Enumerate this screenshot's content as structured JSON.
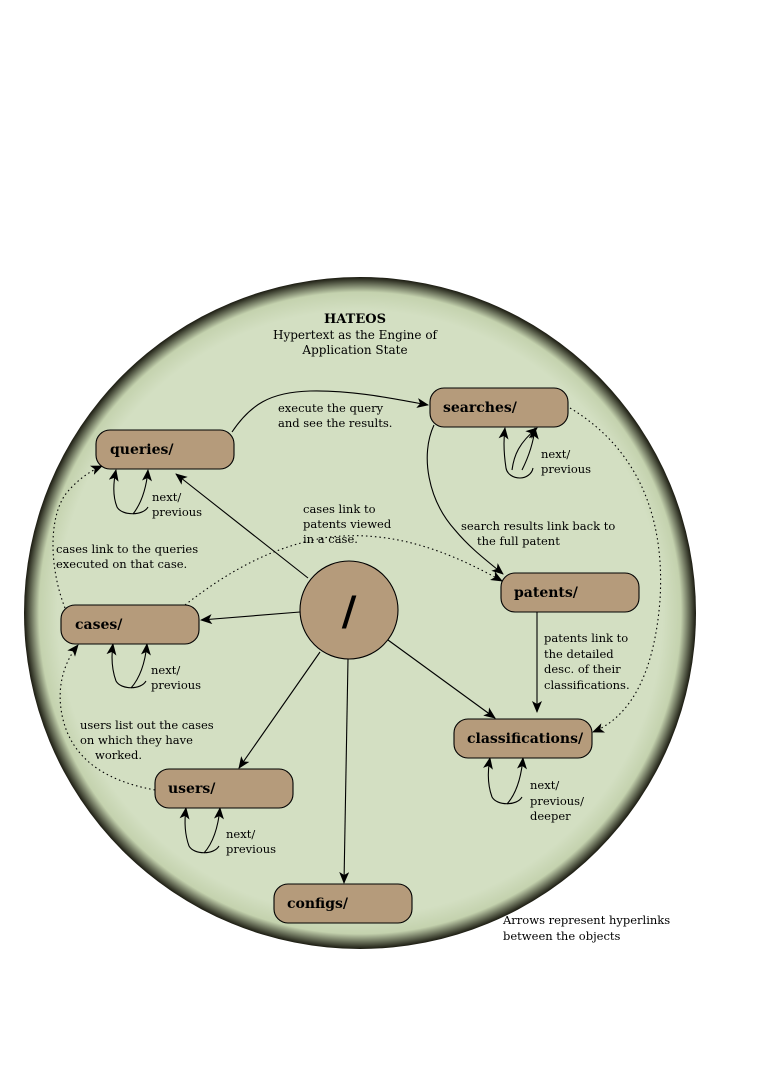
{
  "title": "HATEOS",
  "subtitle_lines": [
    "Hypertext as the Engine of",
    "Application State"
  ],
  "colors": {
    "circle_fill": "#d3dfc2",
    "node_fill": "#b59b7b",
    "stroke": "#000000"
  },
  "nodes": {
    "root": "/",
    "searches": "searches/",
    "queries": "queries/",
    "patents": "patents/",
    "cases": "cases/",
    "classifications": "classifications/",
    "users": "users/",
    "configs": "configs/"
  },
  "annotations": {
    "execute": [
      "execute the query",
      "and see the results."
    ],
    "searches_next": [
      "next/",
      "previous"
    ],
    "queries_next": [
      "next/",
      "previous"
    ],
    "cases_patents": [
      "cases link to",
      "patents viewed",
      "in a case."
    ],
    "search_results": [
      "search results link back to",
      "the full patent"
    ],
    "cases_queries": [
      "cases link to the queries",
      "executed on that case."
    ],
    "cases_next": [
      "next/",
      "previous"
    ],
    "patents_class": [
      "patents link to",
      "the detailed",
      "desc. of their",
      "classifications."
    ],
    "users_cases": [
      "users list out the cases",
      "on which they have",
      "worked."
    ],
    "class_next": [
      "next/",
      "previous/",
      "deeper"
    ],
    "users_next": [
      "next/",
      "previous"
    ]
  },
  "legend": [
    "Arrows represent hyperlinks",
    "between the objects"
  ]
}
